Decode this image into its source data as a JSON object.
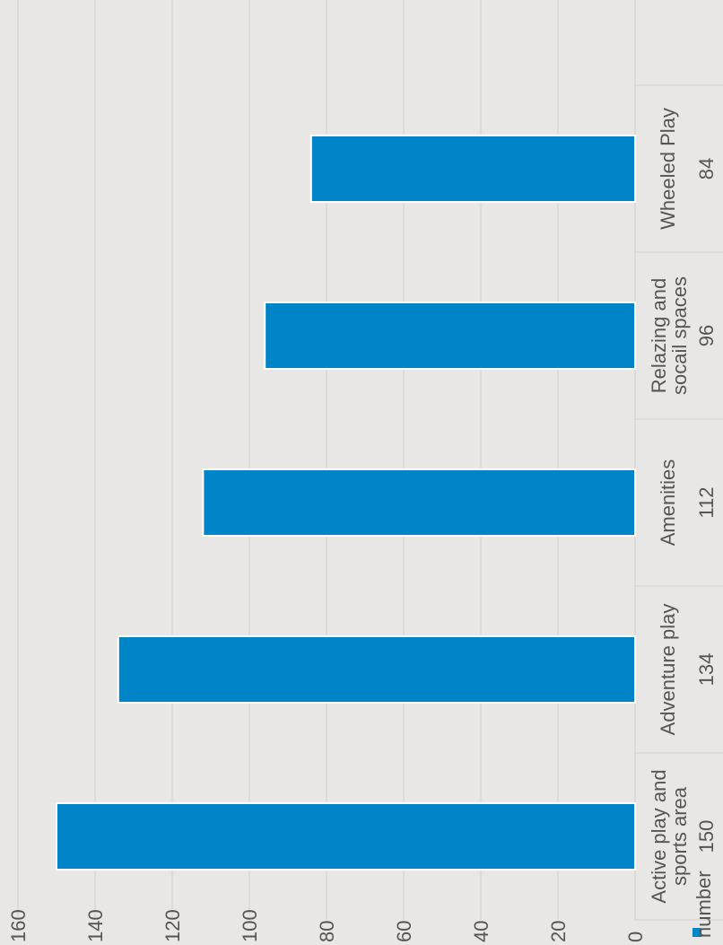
{
  "chart_data": {
    "type": "bar",
    "orientation": "rotated-90",
    "categories": [
      [
        "Active play and",
        "sports area"
      ],
      [
        "Adventure play"
      ],
      [
        "Amenities"
      ],
      [
        "Relazing and",
        "socail spaces"
      ],
      [
        "Wheeled Play"
      ]
    ],
    "values": [
      150,
      134,
      112,
      96,
      84
    ],
    "data_labels": [
      "150",
      "134",
      "112",
      "96",
      "84"
    ],
    "series": [
      {
        "name": "number",
        "values": [
          150,
          134,
          112,
          96,
          84
        ]
      }
    ],
    "ylim": [
      0,
      160
    ],
    "yticks": [
      0,
      20,
      40,
      60,
      80,
      100,
      120,
      140,
      160
    ],
    "grid": true,
    "legend": "bottom-left",
    "colors": {
      "bar": "#0084c8",
      "bar_outline": "#ffffff",
      "grid": "#d4d2cf",
      "text": "#555555",
      "background": "#e9e7e5"
    }
  }
}
